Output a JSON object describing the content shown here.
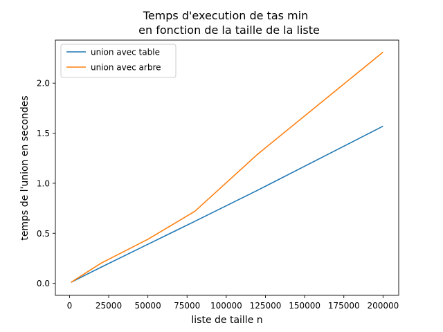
{
  "chart_data": {
    "type": "line",
    "title": [
      "Temps d'execution de tas min",
      "en fonction de la taille de la liste"
    ],
    "xlabel": "liste de taille n",
    "ylabel": "temps de l'union en secondes",
    "xlim": [
      -9000,
      210000
    ],
    "ylim": [
      -0.12,
      2.43
    ],
    "xticks": [
      0,
      25000,
      50000,
      75000,
      100000,
      125000,
      150000,
      175000,
      200000
    ],
    "xtick_labels": [
      "0",
      "25000",
      "50000",
      "75000",
      "100000",
      "125000",
      "150000",
      "175000",
      "200000"
    ],
    "yticks": [
      0.0,
      0.5,
      1.0,
      1.5,
      2.0
    ],
    "ytick_labels": [
      "0.0",
      "0.5",
      "1.0",
      "1.5",
      "2.0"
    ],
    "grid": false,
    "legend_position": "upper-left",
    "series": [
      {
        "name": "union avec table",
        "color": "#1f77b4",
        "x": [
          1000,
          20000,
          50000,
          80000,
          120000,
          200000
        ],
        "y": [
          0.01,
          0.16,
          0.39,
          0.62,
          0.93,
          1.57
        ]
      },
      {
        "name": "union avec arbre",
        "color": "#ff7f0e",
        "x": [
          1000,
          20000,
          50000,
          80000,
          120000,
          200000
        ],
        "y": [
          0.01,
          0.2,
          0.44,
          0.72,
          1.29,
          2.31
        ]
      }
    ]
  }
}
